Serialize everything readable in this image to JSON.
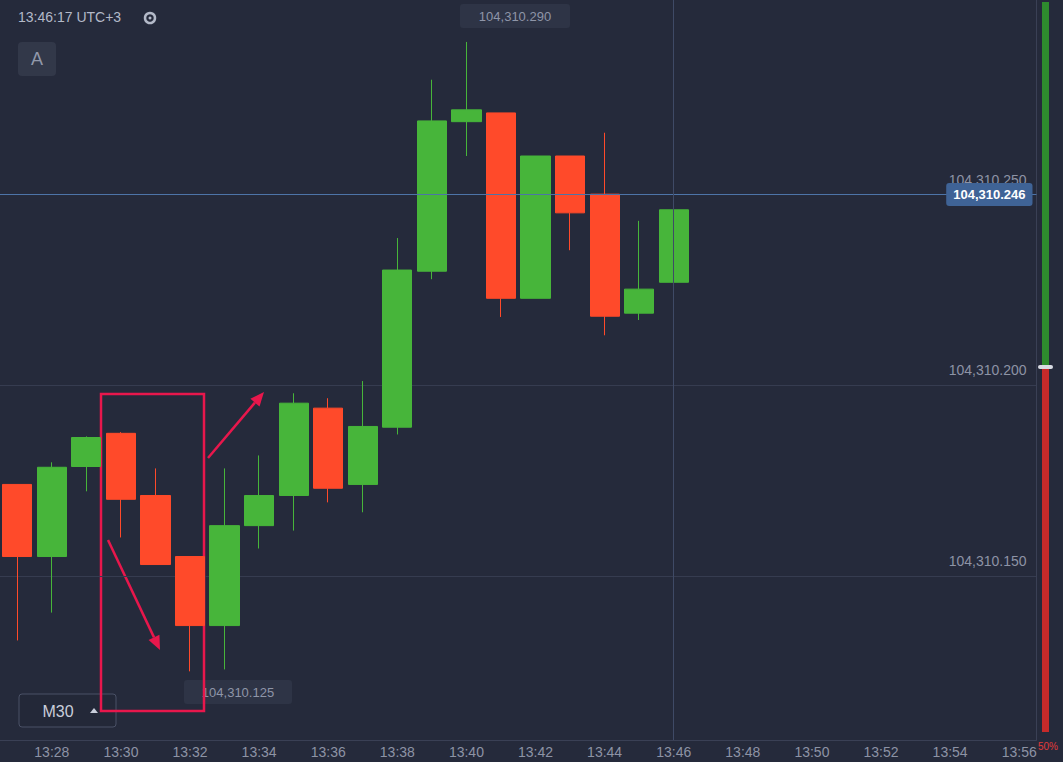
{
  "chart_data": {
    "type": "candlestick",
    "categories": [
      null,
      "13:28",
      null,
      "13:30",
      null,
      "13:32",
      null,
      "13:34",
      null,
      "13:36",
      null,
      "13:38",
      null,
      "13:40",
      null,
      "13:42",
      null,
      "13:44",
      null,
      "13:46",
      null,
      "13:48",
      null,
      "13:50",
      null,
      "13:52",
      null,
      "13:54",
      null,
      "13:56"
    ],
    "open": [
      104310.174,
      104310.1551,
      104310.1787,
      104310.1874,
      104310.1711,
      104310.1551,
      104310.137,
      104310.1632,
      104310.1711,
      104310.194,
      104310.174,
      104310.189,
      104310.2299,
      104310.2691,
      104310.2714,
      104310.2228,
      104310.2601,
      104310.2501,
      104310.2189,
      104310.227,
      null,
      null,
      null,
      null,
      null,
      null,
      null,
      null,
      null,
      null
    ],
    "close": [
      104310.1551,
      104310.1785,
      104310.1863,
      104310.1701,
      104310.153,
      104310.137,
      104310.1632,
      104310.1711,
      104310.1953,
      104310.173,
      104310.1892,
      104310.2302,
      104310.2693,
      104310.2722,
      104310.2228,
      104310.2601,
      104310.2452,
      104310.2181,
      104310.2252,
      104310.246,
      null,
      null,
      null,
      null,
      null,
      null,
      null,
      null,
      null,
      null
    ],
    "low": [
      104310.1331,
      104310.1404,
      104310.1722,
      104310.1601,
      104310.153,
      104310.125,
      104310.1255,
      104310.1572,
      104310.1619,
      104310.1693,
      104310.1667,
      104310.1871,
      104310.2278,
      104310.2601,
      104310.2179,
      104310.2228,
      104310.2354,
      104310.2131,
      104310.2171,
      104310.227,
      null,
      null,
      null,
      null,
      null,
      null,
      null,
      null,
      null,
      null
    ],
    "high": [
      104310.174,
      104310.1798,
      104310.1866,
      104310.1877,
      104310.1782,
      104310.1551,
      104310.1782,
      104310.1816,
      104310.1979,
      104310.1966,
      104310.2011,
      104310.2386,
      104310.2801,
      104310.29,
      104310.2714,
      104310.2601,
      104310.2601,
      104310.2662,
      104310.2431,
      104310.246,
      null,
      null,
      null,
      null,
      null,
      null,
      null,
      null,
      null,
      null
    ],
    "colors": [
      "#ff4a2a",
      "#47b53a",
      "#47b53a",
      "#ff4a2a",
      "#ff4a2a",
      "#ff4a2a",
      "#47b53a",
      "#47b53a",
      "#47b53a",
      "#ff4a2a",
      "#47b53a",
      "#47b53a",
      "#47b53a",
      "#47b53a",
      "#ff4a2a",
      "#47b53a",
      "#ff4a2a",
      "#ff4a2a",
      "#47b53a",
      "#47b53a",
      null,
      null,
      null,
      null,
      null,
      null,
      null,
      null,
      null,
      null
    ],
    "ylim": [
      104310.107,
      104310.301
    ],
    "yticks": [
      {
        "value": 104310.15,
        "label": "104,310.150"
      },
      {
        "value": 104310.2,
        "label": "104,310.200"
      },
      {
        "value": 104310.25,
        "label": "104,310.250"
      }
    ],
    "grid": true,
    "price": 104310.246,
    "price_label": "104,310.246",
    "high_label": "104,310.290",
    "low_label": "104,310.125",
    "clock": "13:46:17 UTC+3",
    "panel_letter": "A",
    "timeframe": "M30",
    "sentiment": {
      "value": 50,
      "label": "50%"
    }
  }
}
